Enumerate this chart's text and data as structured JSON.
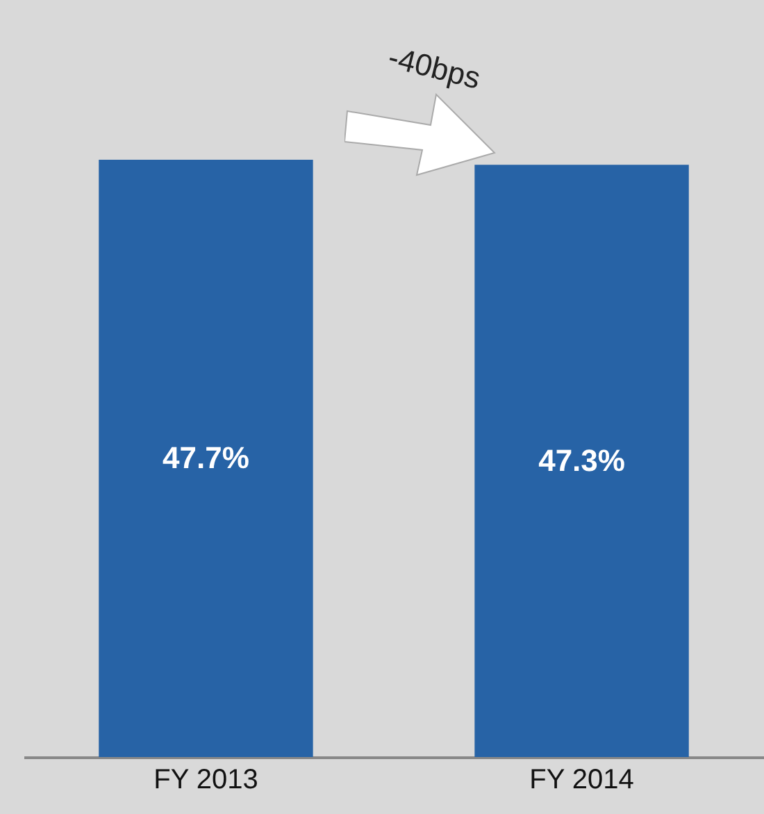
{
  "chart_data": {
    "type": "bar",
    "categories": [
      "FY 2013",
      "FY 2014"
    ],
    "values": [
      47.7,
      47.3
    ],
    "value_labels": [
      "47.7%",
      "47.3%"
    ],
    "color": "#2763a6",
    "annotations": [
      "-40bps"
    ]
  }
}
